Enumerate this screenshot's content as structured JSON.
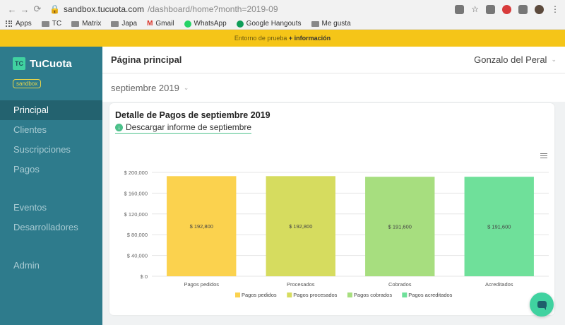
{
  "browser": {
    "url_domain": "sandbox.tucuota.com",
    "url_path": "/dashboard/home?month=2019-09",
    "bookmarks": [
      "Apps",
      "TC",
      "Matrix",
      "Japa",
      "Gmail",
      "WhatsApp",
      "Google Hangouts",
      "Me gusta"
    ]
  },
  "banner": {
    "text": "Entorno de prueba",
    "link": "+ información"
  },
  "sidebar": {
    "logo_mark": "TC",
    "logo_text": "TuCuota",
    "badge": "sandbox",
    "items": [
      "Principal",
      "Clientes",
      "Suscripciones",
      "Pagos",
      "Eventos",
      "Desarrolladores",
      "Admin"
    ]
  },
  "header": {
    "title": "Página principal",
    "user": "Gonzalo del Peral"
  },
  "month_selector": {
    "value": "septiembre 2019"
  },
  "card": {
    "title": "Detalle de Pagos de septiembre 2019",
    "download": "Descargar informe de septiembre"
  },
  "chart_data": {
    "type": "bar",
    "categories": [
      "Pagos pedidos",
      "Procesados",
      "Cobrados",
      "Acreditados"
    ],
    "values": [
      192800,
      192800,
      191600,
      191600
    ],
    "data_labels": [
      "$ 192,800",
      "$ 192,800",
      "$ 191,600",
      "$ 191,600"
    ],
    "colors": [
      "#fbd24e",
      "#d6dc5f",
      "#a7de7f",
      "#6fe09a"
    ],
    "legend": [
      "Pagos pedidos",
      "Pagos procesados",
      "Pagos cobrados",
      "Pagos acreditados"
    ],
    "y_ticks": [
      "$ 0",
      "$ 40,000",
      "$ 80,000",
      "$ 120,000",
      "$ 160,000",
      "$ 200,000"
    ],
    "ylim": [
      0,
      200000
    ],
    "legend_position": "bottom"
  }
}
